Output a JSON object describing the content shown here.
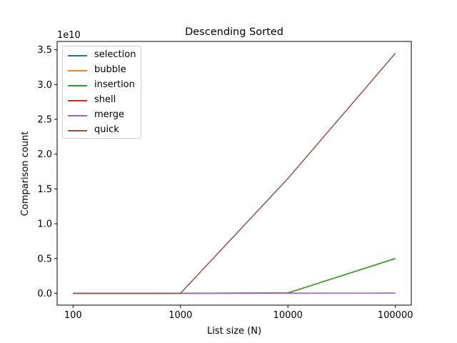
{
  "chart_data": {
    "type": "line",
    "title": "Descending Sorted",
    "xlabel": "List size (N)",
    "ylabel": "Comparison count",
    "y_offset_label": "1e10",
    "x_scale": "log",
    "x": [
      100,
      1000,
      10000,
      100000
    ],
    "x_tick_labels": [
      "100",
      "1000",
      "10000",
      "100000"
    ],
    "y_tick_values": [
      0,
      0.5,
      1.0,
      1.5,
      2.0,
      2.5,
      3.0,
      3.5
    ],
    "y_tick_labels": [
      "0.0",
      "0.5",
      "1.0",
      "1.5",
      "2.0",
      "2.5",
      "3.0",
      "3.5"
    ],
    "y_unit_multiplier": 10000000000,
    "ylim": [
      -0.17,
      3.62
    ],
    "legend_position": "upper-left",
    "grid": false,
    "series": [
      {
        "name": "selection",
        "color": "#1f77b4",
        "values": [
          5e-07,
          5e-05,
          0.005,
          0.5
        ]
      },
      {
        "name": "bubble",
        "color": "#ff7f0e",
        "values": [
          5e-07,
          5e-05,
          0.005,
          0.5
        ]
      },
      {
        "name": "insertion",
        "color": "#2ca02c",
        "values": [
          5e-07,
          5e-05,
          0.005,
          0.5
        ]
      },
      {
        "name": "shell",
        "color": "#d62728",
        "values": [
          5e-07,
          1e-05,
          0.0002,
          0.003
        ]
      },
      {
        "name": "merge",
        "color": "#9467bd",
        "values": [
          5e-07,
          1e-05,
          0.00015,
          0.002
        ]
      },
      {
        "name": "quick",
        "color": "#8c564b",
        "values": [
          5e-07,
          5e-05,
          1.65,
          3.45
        ]
      }
    ]
  }
}
